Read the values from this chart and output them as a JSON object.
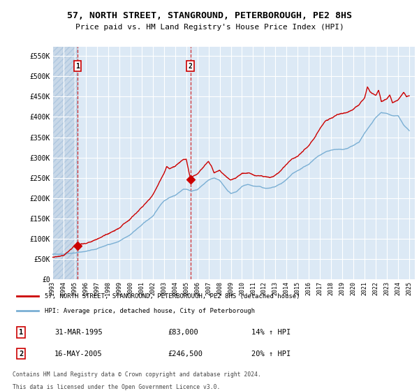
{
  "title": "57, NORTH STREET, STANGROUND, PETERBOROUGH, PE2 8HS",
  "subtitle": "Price paid vs. HM Land Registry's House Price Index (HPI)",
  "background_color": "#ffffff",
  "plot_bg_color": "#dce9f5",
  "hatch_bg_color": "#c8d8e8",
  "grid_color": "#ffffff",
  "red_line_color": "#cc0000",
  "blue_line_color": "#7aafd4",
  "sale1_x": 1995.25,
  "sale1_y": 83000,
  "sale2_x": 2005.38,
  "sale2_y": 246500,
  "xmin": 1993.0,
  "xmax": 2025.5,
  "ymin": 0,
  "ymax": 572000,
  "yticks": [
    0,
    50000,
    100000,
    150000,
    200000,
    250000,
    300000,
    350000,
    400000,
    450000,
    500000,
    550000
  ],
  "ytick_labels": [
    "£0",
    "£50K",
    "£100K",
    "£150K",
    "£200K",
    "£250K",
    "£300K",
    "£350K",
    "£400K",
    "£450K",
    "£500K",
    "£550K"
  ],
  "xticks": [
    1993,
    1994,
    1995,
    1996,
    1997,
    1998,
    1999,
    2000,
    2001,
    2002,
    2003,
    2004,
    2005,
    2006,
    2007,
    2008,
    2009,
    2010,
    2011,
    2012,
    2013,
    2014,
    2015,
    2016,
    2017,
    2018,
    2019,
    2020,
    2021,
    2022,
    2023,
    2024,
    2025
  ],
  "hatch_xmax": 1995.25,
  "legend_line1": "57, NORTH STREET, STANGROUND, PETERBOROUGH, PE2 8HS (detached house)",
  "legend_line2": "HPI: Average price, detached house, City of Peterborough",
  "footer_line1": "Contains HM Land Registry data © Crown copyright and database right 2024.",
  "footer_line2": "This data is licensed under the Open Government Licence v3.0.",
  "table_row1": [
    "1",
    "31-MAR-1995",
    "£83,000",
    "14% ↑ HPI"
  ],
  "table_row2": [
    "2",
    "16-MAY-2005",
    "£246,500",
    "20% ↑ HPI"
  ]
}
